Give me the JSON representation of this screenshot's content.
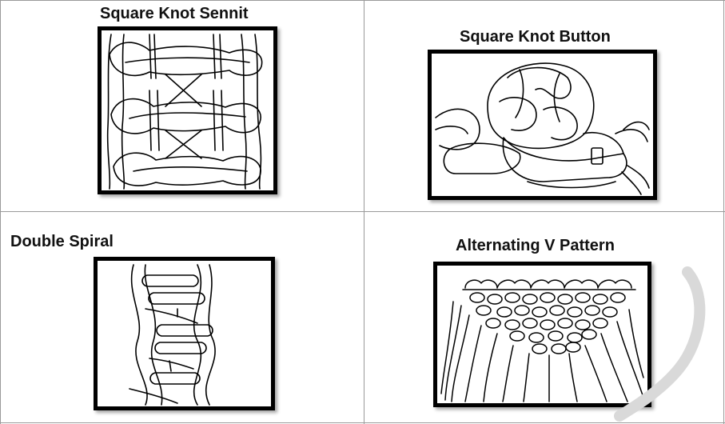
{
  "cells": [
    {
      "title": "Square Knot Sennit",
      "illustration": "square-knot-sennit-drawing"
    },
    {
      "title": "Square Knot Button",
      "illustration": "square-knot-button-drawing"
    },
    {
      "title": "Double Spiral",
      "illustration": "double-spiral-drawing"
    },
    {
      "title": "Alternating V Pattern",
      "illustration": "alternating-v-pattern-drawing"
    }
  ],
  "colors": {
    "grid_line": "#9a9a9a",
    "frame": "#000000",
    "text": "#111111",
    "watermark": "#d9d9d9"
  }
}
